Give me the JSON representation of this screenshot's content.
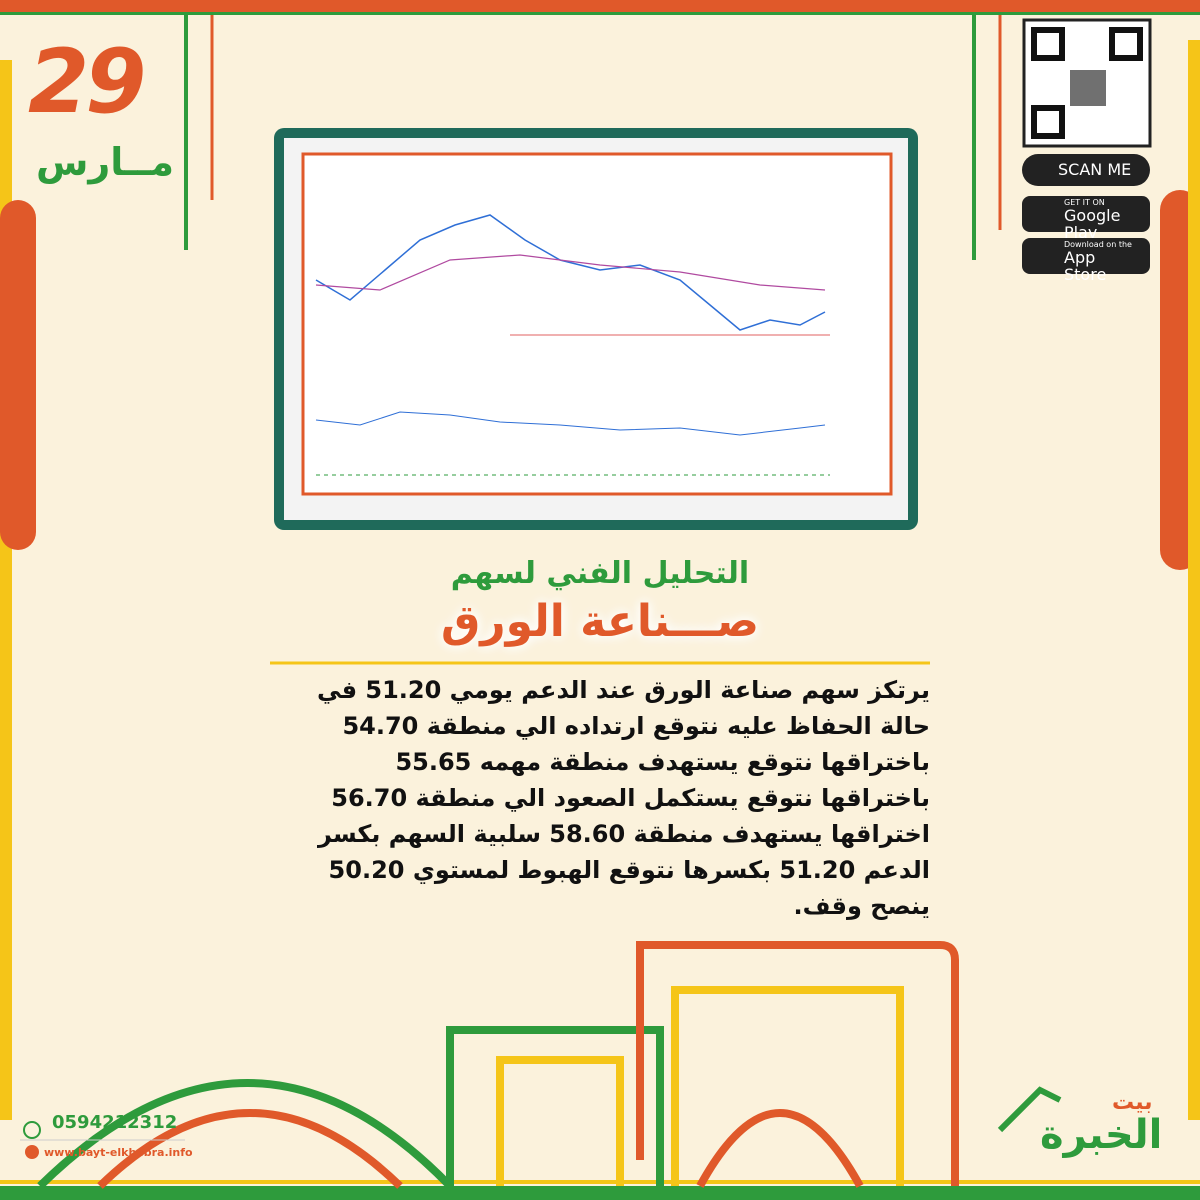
{
  "date": {
    "day": "29",
    "month": "مــارس"
  },
  "store": {
    "scan": "SCAN ME",
    "google_small": "GET IT ON",
    "google": "Google Play",
    "apple_small": "Download on the",
    "apple": "App Store"
  },
  "header": {
    "title": "التحليل الفني لسهم",
    "subtitle": "صـــناعة الورق"
  },
  "body": {
    "lines": [
      "يرتكز سهم صناعة الورق عند الدعم يومي 51.20 في",
      "حالة الحفاظ عليه نتوقع ارتداده الي منطقة 54.70",
      "باختراقها نتوقع يستهدف منطقة مهمه 55.65",
      "باختراقها نتوقع يستكمل الصعود الي منطقة 56.70",
      "اختراقها يستهدف منطقة 58.60 سلبية السهم بكسر",
      "الدعم 51.20  بكسرها نتوقع الهبوط لمستوي 50.20",
      "ينصح وقف."
    ]
  },
  "footer": {
    "phone": "0594212312",
    "website": "www.bayt-elkhebra.info"
  },
  "logo": {
    "top": "بيت",
    "main": "الخبرة"
  }
}
